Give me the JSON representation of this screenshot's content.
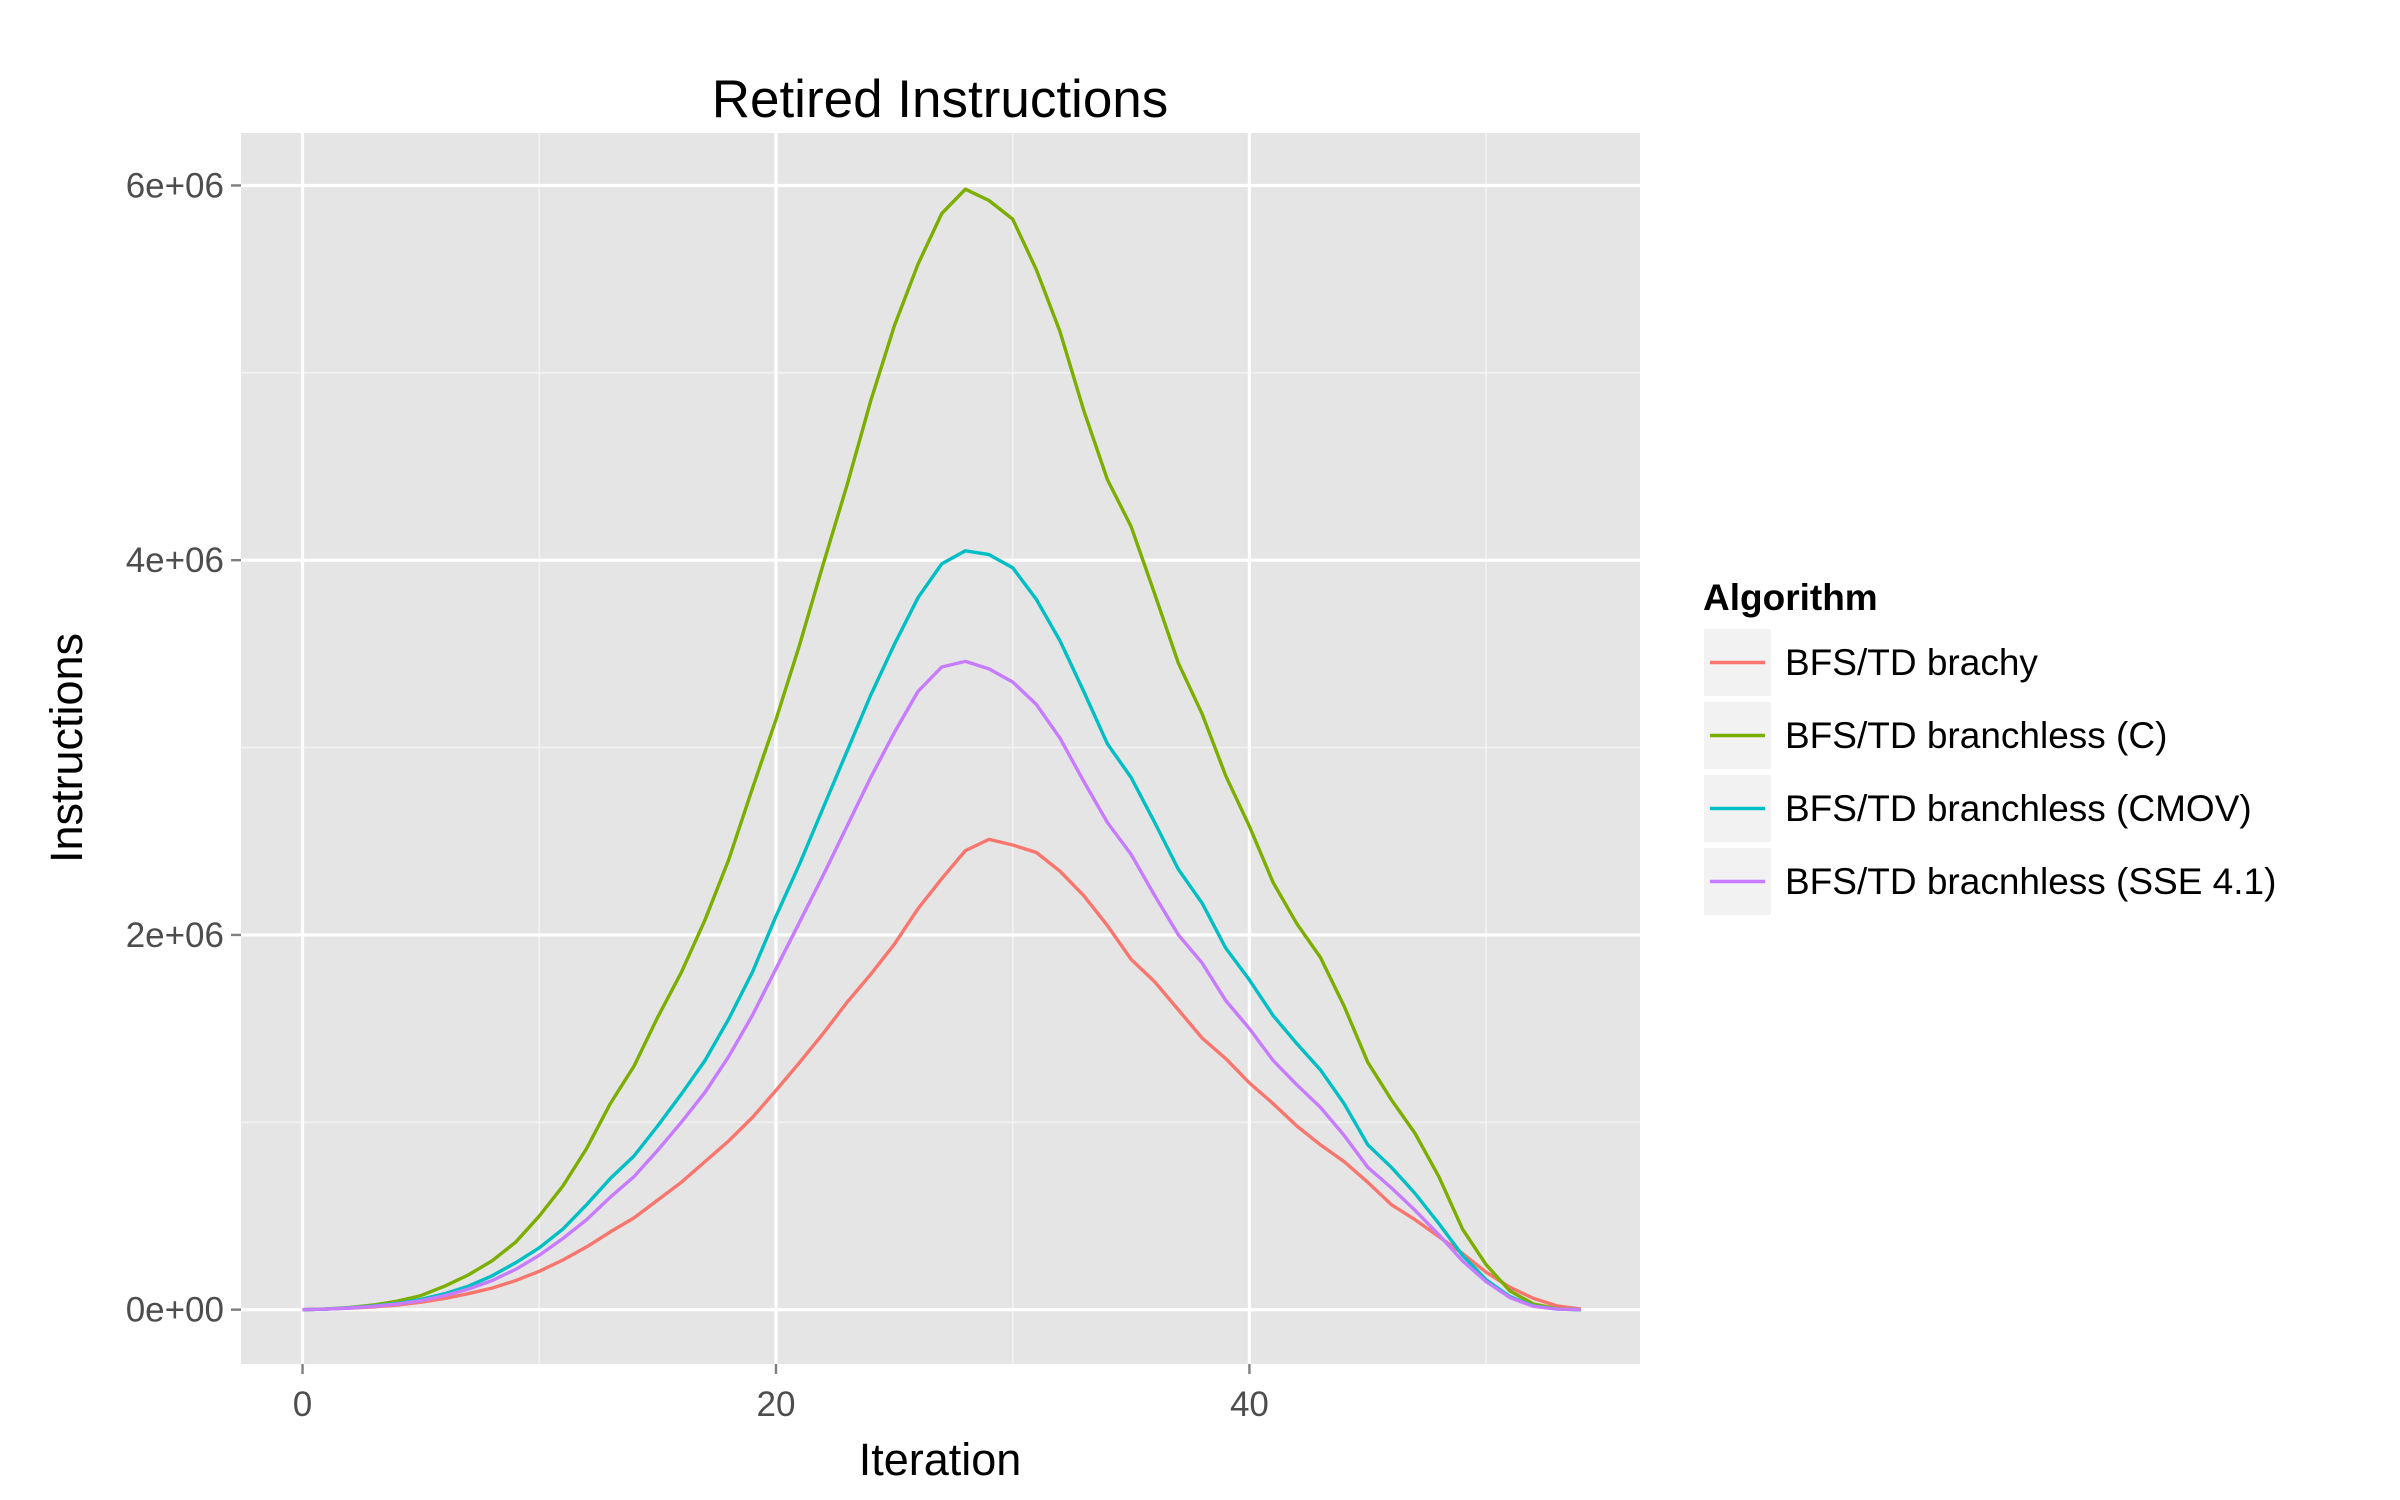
{
  "chart_data": {
    "type": "line",
    "title": "Retired Instructions",
    "xlabel": "Iteration",
    "ylabel": "Instructions",
    "xlim": [
      -2.6,
      56.5
    ],
    "ylim": [
      -290000,
      6280000
    ],
    "x_ticks": [
      0,
      20,
      40
    ],
    "x_tick_labels": [
      "0",
      "20",
      "40"
    ],
    "y_ticks": [
      0,
      2000000,
      4000000,
      6000000
    ],
    "y_tick_labels": [
      "0e+00",
      "2e+06",
      "4e+06",
      "6e+06"
    ],
    "grid": true,
    "legend": {
      "title": "Algorithm",
      "position": "right"
    },
    "x": [
      0,
      1,
      2,
      3,
      4,
      5,
      6,
      7,
      8,
      9,
      10,
      11,
      12,
      13,
      14,
      15,
      16,
      17,
      18,
      19,
      20,
      21,
      22,
      23,
      24,
      25,
      26,
      27,
      28,
      29,
      30,
      31,
      32,
      33,
      34,
      35,
      36,
      37,
      38,
      39,
      40,
      41,
      42,
      43,
      44,
      45,
      46,
      47,
      48,
      49,
      50,
      51,
      52,
      53,
      54
    ],
    "series": [
      {
        "name": "BFS/TD brachy",
        "color": "#F8766D",
        "values": [
          0,
          3000,
          8000,
          15000,
          25000,
          40000,
          60000,
          85000,
          115000,
          155000,
          205000,
          265000,
          335000,
          415000,
          490000,
          585000,
          680000,
          790000,
          900000,
          1025000,
          1170000,
          1320000,
          1475000,
          1640000,
          1790000,
          1950000,
          2140000,
          2300000,
          2450000,
          2510000,
          2480000,
          2440000,
          2340000,
          2210000,
          2050000,
          1870000,
          1750000,
          1600000,
          1450000,
          1340000,
          1210000,
          1100000,
          980000,
          880000,
          790000,
          680000,
          560000,
          480000,
          390000,
          300000,
          200000,
          120000,
          60000,
          20000,
          3000
        ]
      },
      {
        "name": "BFS/TD branchless (C)",
        "color": "#7CAE00",
        "values": [
          0,
          4000,
          12000,
          25000,
          45000,
          75000,
          125000,
          185000,
          260000,
          360000,
          500000,
          660000,
          860000,
          1100000,
          1300000,
          1560000,
          1800000,
          2080000,
          2400000,
          2780000,
          3150000,
          3550000,
          3980000,
          4400000,
          4850000,
          5250000,
          5580000,
          5850000,
          5980000,
          5920000,
          5820000,
          5550000,
          5220000,
          4800000,
          4430000,
          4180000,
          3820000,
          3450000,
          3180000,
          2850000,
          2580000,
          2280000,
          2060000,
          1880000,
          1620000,
          1320000,
          1120000,
          940000,
          710000,
          430000,
          240000,
          100000,
          30000,
          5000,
          0
        ]
      },
      {
        "name": "BFS/TD branchless (CMOV)",
        "color": "#00BFC4",
        "values": [
          0,
          3000,
          10000,
          20000,
          33000,
          55000,
          85000,
          125000,
          180000,
          250000,
          330000,
          430000,
          560000,
          700000,
          820000,
          980000,
          1150000,
          1330000,
          1550000,
          1800000,
          2100000,
          2380000,
          2680000,
          2980000,
          3280000,
          3550000,
          3800000,
          3980000,
          4050000,
          4030000,
          3960000,
          3790000,
          3570000,
          3300000,
          3020000,
          2840000,
          2600000,
          2350000,
          2170000,
          1930000,
          1760000,
          1570000,
          1420000,
          1280000,
          1100000,
          880000,
          760000,
          620000,
          460000,
          290000,
          160000,
          70000,
          20000,
          3000,
          0
        ]
      },
      {
        "name": "BFS/TD bracnhless (SSE 4.1)",
        "color": "#C77CFF",
        "values": [
          0,
          3000,
          9000,
          18000,
          30000,
          48000,
          75000,
          110000,
          155000,
          215000,
          290000,
          380000,
          480000,
          600000,
          710000,
          850000,
          1000000,
          1160000,
          1350000,
          1570000,
          1820000,
          2070000,
          2320000,
          2580000,
          2840000,
          3080000,
          3300000,
          3430000,
          3460000,
          3420000,
          3350000,
          3230000,
          3050000,
          2820000,
          2600000,
          2430000,
          2210000,
          2000000,
          1850000,
          1650000,
          1500000,
          1330000,
          1200000,
          1080000,
          930000,
          760000,
          650000,
          530000,
          400000,
          260000,
          150000,
          65000,
          18000,
          3000,
          0
        ]
      }
    ]
  }
}
